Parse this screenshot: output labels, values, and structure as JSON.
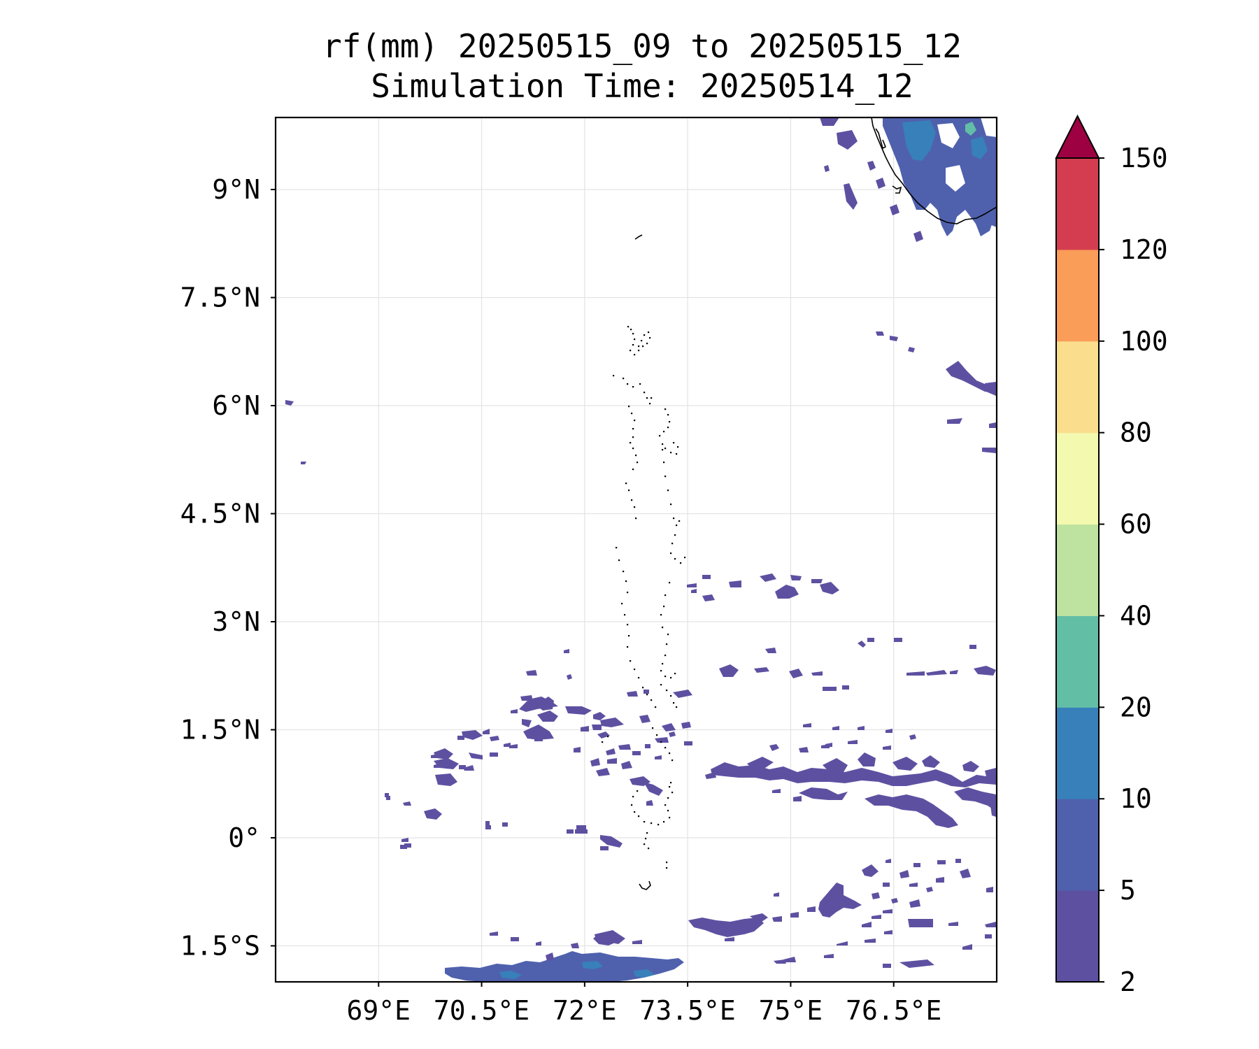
{
  "title": {
    "line1": "rf(mm) 20250515_09 to 20250515_12",
    "line2": "Simulation Time: 20250514_12"
  },
  "map": {
    "lon_range": [
      67.5,
      78.0
    ],
    "lat_range": [
      -2.0,
      10.0
    ],
    "lon_ticks": [
      69,
      70.5,
      72,
      73.5,
      75,
      76.5
    ],
    "lon_tick_labels": [
      "69°E",
      "70.5°E",
      "72°E",
      "73.5°E",
      "75°E",
      "76.5°E"
    ],
    "lat_ticks": [
      9,
      7.5,
      6,
      4.5,
      3,
      1.5,
      0,
      -1.5
    ],
    "lat_tick_labels": [
      "9°N",
      "7.5°N",
      "6°N",
      "4.5°N",
      "3°N",
      "1.5°N",
      "0°",
      "1.5°S"
    ],
    "grid": true,
    "grid_color": "#e3e3e3",
    "coast_color": "#000000"
  },
  "colorbar": {
    "levels": [
      2,
      5,
      10,
      20,
      40,
      60,
      80,
      100,
      120,
      150
    ],
    "labels": [
      "2",
      "5",
      "10",
      "20",
      "40",
      "60",
      "80",
      "100",
      "120",
      "150"
    ],
    "colors": [
      "#5e50a1",
      "#4f61ad",
      "#3880b9",
      "#63bea6",
      "#bee3a0",
      "#f3f9ae",
      "#fbdd8e",
      "#f99d59",
      "#d43d4f"
    ],
    "extend_color": "#9e0142",
    "extend": "max"
  }
}
